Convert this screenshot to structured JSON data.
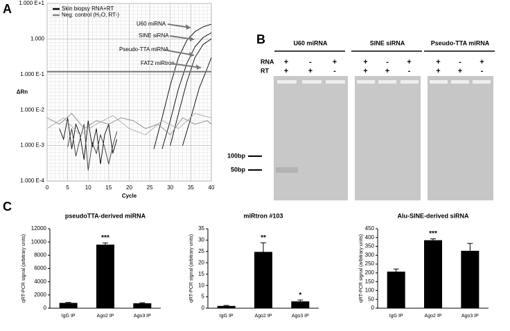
{
  "panel_labels": [
    "A",
    "B",
    "C"
  ],
  "chart_data": [
    {
      "type": "line",
      "log_y": true,
      "x_label": "Cycle",
      "y_label": "ΔRn",
      "xlim": [
        0,
        40
      ],
      "xticks": [
        0,
        5,
        10,
        15,
        20,
        25,
        30,
        35,
        40
      ],
      "ylim": [
        0.0001,
        10
      ],
      "yticks": [
        {
          "value": 10,
          "label": "1.000 E+1"
        },
        {
          "value": 1,
          "label": "1.000"
        },
        {
          "value": 0.1,
          "label": "1.000 E-1"
        },
        {
          "value": 0.01,
          "label": "1.000 E-2"
        },
        {
          "value": 0.001,
          "label": "1.000 E-3"
        },
        {
          "value": 0.0001,
          "label": "1.000 E-4"
        }
      ],
      "grid": true,
      "threshold": 0.12,
      "threshold_color": "#777",
      "legend": [
        {
          "name": "Skin biopsy RNA+RT",
          "color": "#000000"
        },
        {
          "name": "Neg. control (H₂O, RT-)",
          "color": "#888888"
        }
      ],
      "annotations": [
        "U60 miRNA",
        "SINE siRNA",
        "Pseudo-TTA miRNA",
        "FAT2 miRtron"
      ],
      "series": [
        {
          "color": "#000000",
          "x": [
            26,
            28,
            30,
            32,
            34,
            36,
            38,
            40
          ],
          "values": [
            0.0008,
            0.006,
            0.05,
            0.3,
            0.9,
            1.6,
            2.2,
            2.6
          ]
        },
        {
          "color": "#000000",
          "x": [
            28,
            30,
            32,
            34,
            36,
            38,
            40
          ],
          "values": [
            0.0008,
            0.005,
            0.04,
            0.2,
            0.6,
            1.1,
            1.5
          ]
        },
        {
          "color": "#000000",
          "x": [
            30,
            32,
            34,
            36,
            38,
            40
          ],
          "values": [
            0.001,
            0.008,
            0.06,
            0.3,
            0.7,
            1
          ]
        },
        {
          "color": "#000000",
          "x": [
            33,
            35,
            37,
            39,
            40
          ],
          "values": [
            0.001,
            0.006,
            0.04,
            0.15,
            0.3
          ]
        },
        {
          "color": "#000000",
          "x": [
            3,
            4,
            5,
            6,
            7,
            8,
            9,
            10,
            11,
            12,
            13,
            14,
            15,
            16,
            17
          ],
          "values": [
            0.003,
            0.0015,
            0.006,
            0.0008,
            0.004,
            0.002,
            0.0004,
            0.005,
            0.0009,
            0.003,
            0.0003,
            0.002,
            0.004,
            0.0006,
            0.0015
          ]
        },
        {
          "color": "#333333",
          "x": [
            5,
            6,
            7,
            8,
            9,
            10,
            11,
            12,
            13,
            14,
            15,
            16,
            17
          ],
          "values": [
            0.0009,
            0.003,
            0.0005,
            0.0015,
            0.004,
            0.0002,
            0.0012,
            0.0006,
            0.002,
            0.0009,
            0.0003,
            0.001,
            0.0025
          ]
        },
        {
          "color": "#888888",
          "x": [
            0,
            3,
            6,
            9,
            12,
            15,
            18,
            21,
            24,
            27,
            30,
            33,
            36,
            39,
            40
          ],
          "values": [
            0.006,
            0.004,
            0.008,
            0.003,
            0.005,
            0.004,
            0.006,
            0.005,
            0.003,
            0.004,
            0.002,
            0.006,
            0.004,
            0.005,
            0.004
          ]
        },
        {
          "color": "#aaaaaa",
          "x": [
            0,
            4,
            8,
            12,
            16,
            20,
            24,
            28,
            32,
            36,
            40
          ],
          "values": [
            0.003,
            0.006,
            0.002,
            0.004,
            0.007,
            0.003,
            0.002,
            0.005,
            0.003,
            0.008,
            0.006
          ]
        }
      ]
    },
    {
      "type": "bar",
      "title": "pseudoTTA-derived miRNA",
      "y_label": "qRT-PCR signal (arbitrary units)",
      "categories": [
        "IgG IP",
        "Ago2 IP",
        "Ago3 IP"
      ],
      "values": [
        800,
        9600,
        750
      ],
      "errors": [
        80,
        250,
        70
      ],
      "color": "#000000",
      "ylim": [
        0,
        12000
      ],
      "yticks": [
        0,
        2000,
        4000,
        6000,
        8000,
        10000,
        12000
      ],
      "annotations": [
        {
          "category": "Ago2 IP",
          "text": "***"
        }
      ]
    },
    {
      "type": "bar",
      "title": "miRtron #103",
      "y_label": "qRT-PCR signal (arbitrary units)",
      "categories": [
        "IgG IP",
        "Ago2 IP",
        "Ago3 IP"
      ],
      "values": [
        1,
        24.8,
        3
      ],
      "errors": [
        0.2,
        4,
        0.6
      ],
      "color": "#000000",
      "ylim": [
        0,
        35
      ],
      "yticks": [
        0,
        5,
        10,
        15,
        20,
        25,
        30,
        35
      ],
      "annotations": [
        {
          "category": "Ago2 IP",
          "text": "**"
        },
        {
          "category": "Ago3 IP",
          "text": "*"
        }
      ]
    },
    {
      "type": "bar",
      "title": "Alu-SINE-derived siRNA",
      "y_label": "qRT-PCR signal (arbitrary units)",
      "categories": [
        "IgG IP",
        "Ago2 IP",
        "Ago3 IP"
      ],
      "values": [
        207,
        385,
        325
      ],
      "errors": [
        15,
        8,
        42
      ],
      "color": "#000000",
      "ylim": [
        0,
        450
      ],
      "yticks": [
        0,
        50,
        100,
        150,
        200,
        250,
        300,
        350,
        400,
        450
      ],
      "annotations": [
        {
          "category": "Ago2 IP",
          "text": "***"
        }
      ]
    }
  ],
  "gel": {
    "row_labels": [
      "RNA",
      "RT"
    ],
    "ladder": [
      "100bp",
      "50bp"
    ],
    "groups": [
      {
        "title": "U60 miRNA",
        "rna": [
          "+",
          "-",
          "+"
        ],
        "rt": [
          "+",
          "+",
          "-"
        ]
      },
      {
        "title": "SINE siRNA",
        "rna": [
          "+",
          "-",
          "+"
        ],
        "rt": [
          "+",
          "+",
          "-"
        ]
      },
      {
        "title": "Pseudo-TTA miRNA",
        "rna": [
          "+",
          "-",
          "+"
        ],
        "rt": [
          "+",
          "+",
          "-"
        ]
      }
    ]
  }
}
